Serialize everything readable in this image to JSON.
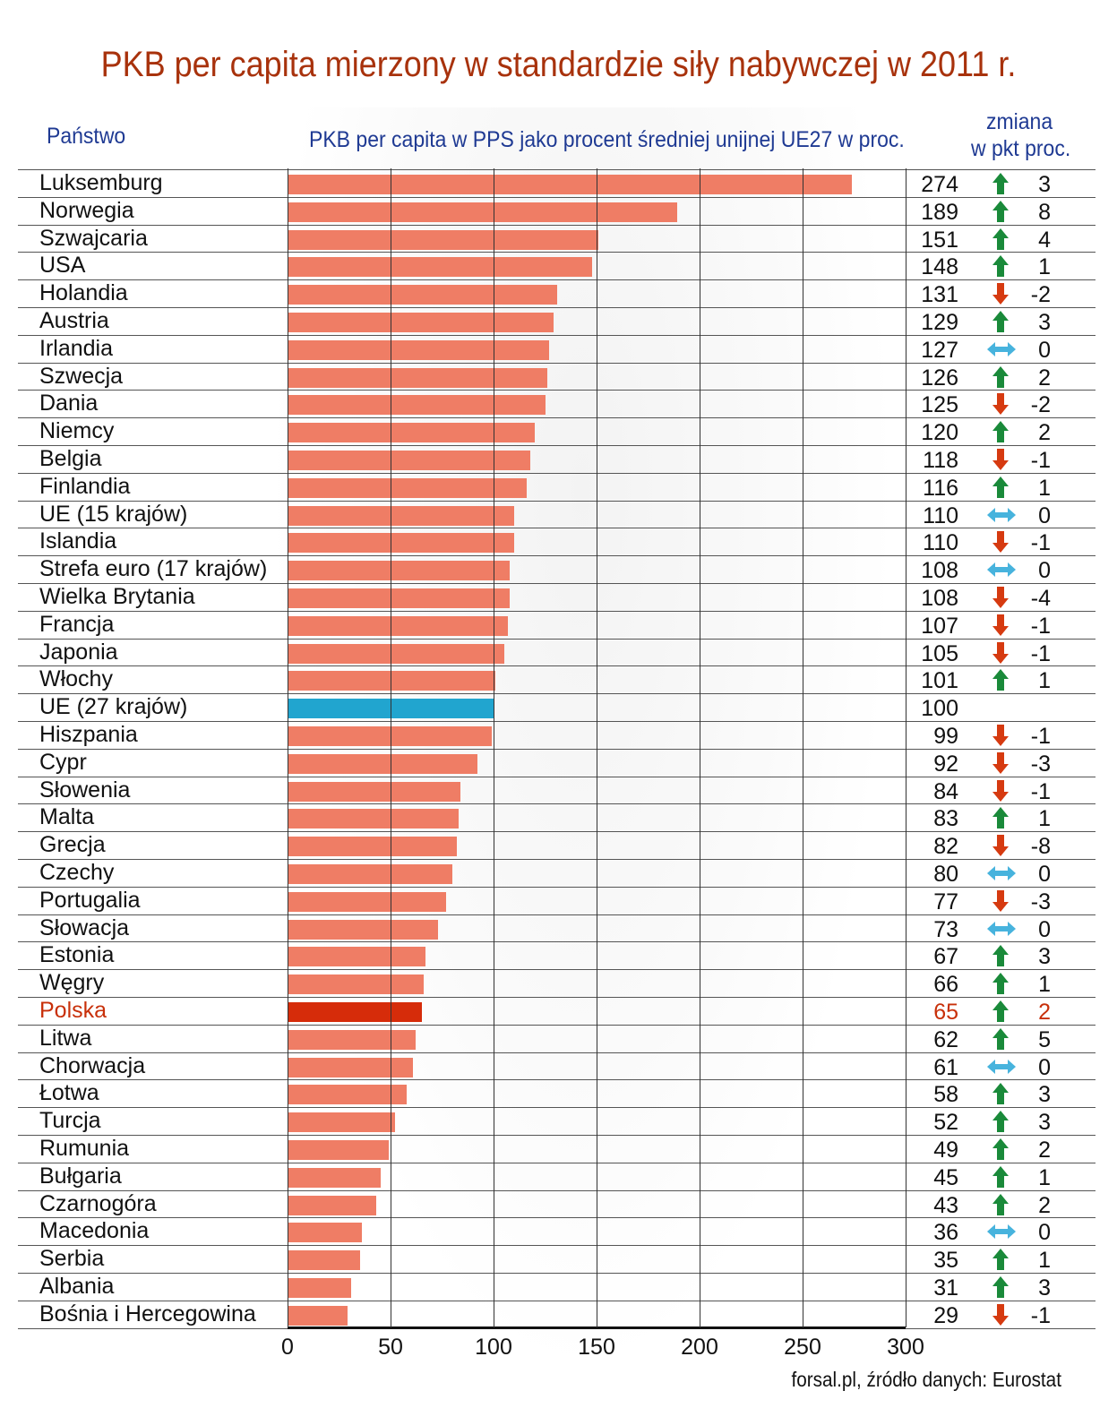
{
  "title": "PKB per capita mierzony w standardzie siły nabywczej w 2011 r.",
  "headers": {
    "country": "Państwo",
    "bar": "PKB per capita w PPS jako procent średniej unijnej UE27 w proc.",
    "change1": "zmiana",
    "change2": "w pkt proc."
  },
  "source": "forsal.pl, źródło danych: Eurostat",
  "colors": {
    "bar": "#ef7d65",
    "eu27": "#21a5cf",
    "poland": "#d62c0a",
    "up": "#1a8a3a",
    "down": "#d63a10",
    "flat": "#47b3dd"
  },
  "chart_data": {
    "type": "bar",
    "orientation": "horizontal",
    "xlim": [
      0,
      300
    ],
    "xticks": [
      "0",
      "50",
      "100",
      "150",
      "200",
      "250",
      "300"
    ],
    "rows": [
      [
        "Luksemburg",
        274,
        "3",
        "up"
      ],
      [
        "Norwegia",
        189,
        "8",
        "up"
      ],
      [
        "Szwajcaria",
        151,
        "4",
        "up"
      ],
      [
        "USA",
        148,
        "1",
        "up"
      ],
      [
        "Holandia",
        131,
        "-2",
        "down"
      ],
      [
        "Austria",
        129,
        "3",
        "up"
      ],
      [
        "Irlandia",
        127,
        "0",
        "flat"
      ],
      [
        "Szwecja",
        126,
        "2",
        "up"
      ],
      [
        "Dania",
        125,
        "-2",
        "down"
      ],
      [
        "Niemcy",
        120,
        "2",
        "up"
      ],
      [
        "Belgia",
        118,
        "-1",
        "down"
      ],
      [
        "Finlandia",
        116,
        "1",
        "up"
      ],
      [
        "UE (15 krajów)",
        110,
        "0",
        "flat"
      ],
      [
        "Islandia",
        110,
        "-1",
        "down"
      ],
      [
        "Strefa euro (17 krajów)",
        108,
        "0",
        "flat"
      ],
      [
        "Wielka Brytania",
        108,
        "-4",
        "down"
      ],
      [
        "Francja",
        107,
        "-1",
        "down"
      ],
      [
        "Japonia",
        105,
        "-1",
        "down"
      ],
      [
        "Włochy",
        101,
        "1",
        "up"
      ],
      [
        "UE (27 krajów)",
        100,
        "",
        ""
      ],
      [
        "Hiszpania",
        99,
        "-1",
        "down"
      ],
      [
        "Cypr",
        92,
        "-3",
        "down"
      ],
      [
        "Słowenia",
        84,
        "-1",
        "down"
      ],
      [
        "Malta",
        83,
        "1",
        "up"
      ],
      [
        "Grecja",
        82,
        "-8",
        "down"
      ],
      [
        "Czechy",
        80,
        "0",
        "flat"
      ],
      [
        "Portugalia",
        77,
        "-3",
        "down"
      ],
      [
        "Słowacja",
        73,
        "0",
        "flat"
      ],
      [
        "Estonia",
        67,
        "3",
        "up"
      ],
      [
        "Węgry",
        66,
        "1",
        "up"
      ],
      [
        "Polska",
        65,
        "2",
        "up"
      ],
      [
        "Litwa",
        62,
        "5",
        "up"
      ],
      [
        "Chorwacja",
        61,
        "0",
        "flat"
      ],
      [
        "Łotwa",
        58,
        "3",
        "up"
      ],
      [
        "Turcja",
        52,
        "3",
        "up"
      ],
      [
        "Rumunia",
        49,
        "2",
        "up"
      ],
      [
        "Bułgaria",
        45,
        "1",
        "up"
      ],
      [
        "Czarnogóra",
        43,
        "2",
        "up"
      ],
      [
        "Macedonia",
        36,
        "0",
        "flat"
      ],
      [
        "Serbia",
        35,
        "1",
        "up"
      ],
      [
        "Albania",
        31,
        "3",
        "up"
      ],
      [
        "Bośnia i Hercegowina",
        29,
        "-1",
        "down"
      ]
    ]
  }
}
